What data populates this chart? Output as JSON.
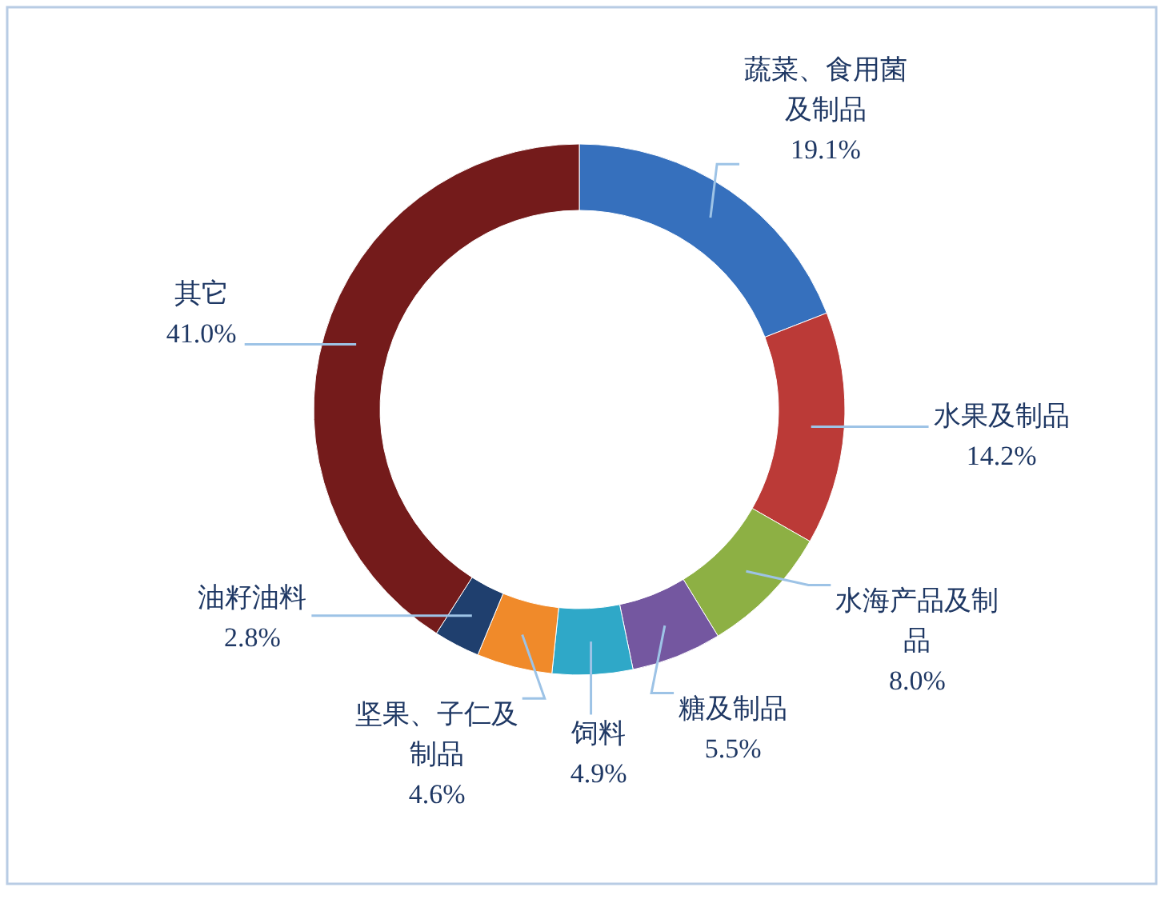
{
  "chart_data": {
    "type": "donut",
    "categories": [
      "蔬菜、食用菌及制品",
      "水果及制品",
      "水海产品及制品",
      "糖及制品",
      "饲料",
      "坚果、子仁及制品",
      "油籽油料",
      "其它"
    ],
    "values": [
      19.1,
      14.2,
      8.0,
      5.5,
      4.9,
      4.6,
      2.8,
      41.0
    ],
    "value_labels": [
      "19.1%",
      "14.2%",
      "8.0%",
      "5.5%",
      "4.9%",
      "4.6%",
      "2.8%",
      "41.0%"
    ],
    "colors": [
      "#3670bd",
      "#bb3a37",
      "#8db044",
      "#7457a0",
      "#2fa8c8",
      "#f08a2a",
      "#1f3f6e",
      "#741b1b"
    ]
  }
}
